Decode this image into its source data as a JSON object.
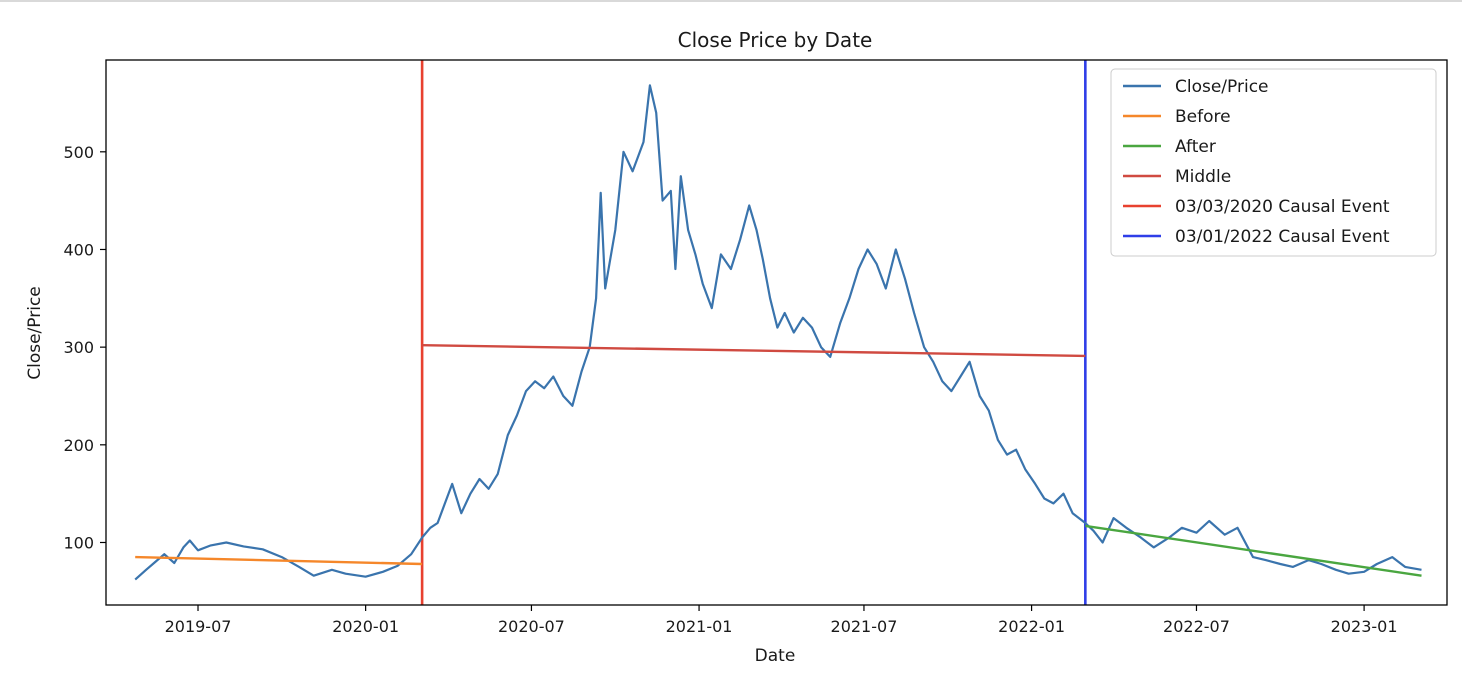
{
  "chart_data": {
    "type": "line",
    "title": "Close Price by Date",
    "xlabel": "Date",
    "ylabel": "Close/Price",
    "x_range": [
      "2019-03-22",
      "2023-04-02"
    ],
    "ylim": [
      36,
      594
    ],
    "x_ticks": [
      "2019-07",
      "2020-01",
      "2020-07",
      "2021-01",
      "2021-07",
      "2022-01",
      "2022-07",
      "2023-01"
    ],
    "y_ticks": [
      100,
      200,
      300,
      400,
      500
    ],
    "grid": false,
    "legend_position": "top-right",
    "series": [
      {
        "name": "Close/Price",
        "color": "#3a74ad",
        "points": [
          [
            "2019-04-23",
            62
          ],
          [
            "2019-05-05",
            72
          ],
          [
            "2019-05-15",
            80
          ],
          [
            "2019-05-25",
            88
          ],
          [
            "2019-06-05",
            79
          ],
          [
            "2019-06-15",
            95
          ],
          [
            "2019-06-22",
            102
          ],
          [
            "2019-07-01",
            92
          ],
          [
            "2019-07-15",
            97
          ],
          [
            "2019-08-01",
            100
          ],
          [
            "2019-08-20",
            96
          ],
          [
            "2019-09-10",
            93
          ],
          [
            "2019-10-01",
            85
          ],
          [
            "2019-10-20",
            75
          ],
          [
            "2019-11-05",
            66
          ],
          [
            "2019-11-25",
            72
          ],
          [
            "2019-12-10",
            68
          ],
          [
            "2020-01-01",
            65
          ],
          [
            "2020-01-20",
            70
          ],
          [
            "2020-02-05",
            76
          ],
          [
            "2020-02-20",
            88
          ],
          [
            "2020-03-03",
            105
          ],
          [
            "2020-03-12",
            115
          ],
          [
            "2020-03-20",
            120
          ],
          [
            "2020-03-28",
            140
          ],
          [
            "2020-04-05",
            160
          ],
          [
            "2020-04-15",
            130
          ],
          [
            "2020-04-25",
            150
          ],
          [
            "2020-05-05",
            165
          ],
          [
            "2020-05-15",
            155
          ],
          [
            "2020-05-25",
            170
          ],
          [
            "2020-06-05",
            210
          ],
          [
            "2020-06-15",
            230
          ],
          [
            "2020-06-25",
            255
          ],
          [
            "2020-07-05",
            265
          ],
          [
            "2020-07-15",
            258
          ],
          [
            "2020-07-25",
            270
          ],
          [
            "2020-08-05",
            250
          ],
          [
            "2020-08-15",
            240
          ],
          [
            "2020-08-25",
            275
          ],
          [
            "2020-09-03",
            300
          ],
          [
            "2020-09-10",
            350
          ],
          [
            "2020-09-15",
            458
          ],
          [
            "2020-09-20",
            360
          ],
          [
            "2020-10-01",
            420
          ],
          [
            "2020-10-10",
            500
          ],
          [
            "2020-10-20",
            480
          ],
          [
            "2020-11-01",
            510
          ],
          [
            "2020-11-08",
            568
          ],
          [
            "2020-11-15",
            540
          ],
          [
            "2020-11-22",
            450
          ],
          [
            "2020-12-01",
            460
          ],
          [
            "2020-12-06",
            380
          ],
          [
            "2020-12-12",
            475
          ],
          [
            "2020-12-20",
            420
          ],
          [
            "2020-12-28",
            395
          ],
          [
            "2021-01-05",
            365
          ],
          [
            "2021-01-15",
            340
          ],
          [
            "2021-01-25",
            395
          ],
          [
            "2021-02-05",
            380
          ],
          [
            "2021-02-15",
            410
          ],
          [
            "2021-02-25",
            445
          ],
          [
            "2021-03-05",
            420
          ],
          [
            "2021-03-12",
            390
          ],
          [
            "2021-03-20",
            350
          ],
          [
            "2021-03-28",
            320
          ],
          [
            "2021-04-05",
            335
          ],
          [
            "2021-04-15",
            315
          ],
          [
            "2021-04-25",
            330
          ],
          [
            "2021-05-05",
            320
          ],
          [
            "2021-05-15",
            300
          ],
          [
            "2021-05-25",
            290
          ],
          [
            "2021-06-05",
            325
          ],
          [
            "2021-06-15",
            350
          ],
          [
            "2021-06-25",
            380
          ],
          [
            "2021-07-05",
            400
          ],
          [
            "2021-07-15",
            385
          ],
          [
            "2021-07-25",
            360
          ],
          [
            "2021-08-05",
            400
          ],
          [
            "2021-08-15",
            370
          ],
          [
            "2021-08-25",
            335
          ],
          [
            "2021-09-05",
            300
          ],
          [
            "2021-09-15",
            285
          ],
          [
            "2021-09-25",
            265
          ],
          [
            "2021-10-05",
            255
          ],
          [
            "2021-10-15",
            270
          ],
          [
            "2021-10-25",
            285
          ],
          [
            "2021-11-05",
            250
          ],
          [
            "2021-11-15",
            235
          ],
          [
            "2021-11-25",
            205
          ],
          [
            "2021-12-05",
            190
          ],
          [
            "2021-12-15",
            195
          ],
          [
            "2021-12-25",
            175
          ],
          [
            "2022-01-05",
            160
          ],
          [
            "2022-01-15",
            145
          ],
          [
            "2022-01-25",
            140
          ],
          [
            "2022-02-05",
            150
          ],
          [
            "2022-02-15",
            130
          ],
          [
            "2022-03-01",
            120
          ],
          [
            "2022-03-10",
            112
          ],
          [
            "2022-03-20",
            100
          ],
          [
            "2022-04-01",
            125
          ],
          [
            "2022-04-15",
            115
          ],
          [
            "2022-05-01",
            105
          ],
          [
            "2022-05-15",
            95
          ],
          [
            "2022-06-01",
            105
          ],
          [
            "2022-06-15",
            115
          ],
          [
            "2022-07-01",
            110
          ],
          [
            "2022-07-15",
            122
          ],
          [
            "2022-08-01",
            108
          ],
          [
            "2022-08-15",
            115
          ],
          [
            "2022-09-01",
            85
          ],
          [
            "2022-09-15",
            82
          ],
          [
            "2022-10-01",
            78
          ],
          [
            "2022-10-15",
            75
          ],
          [
            "2022-11-01",
            82
          ],
          [
            "2022-11-15",
            78
          ],
          [
            "2022-12-01",
            72
          ],
          [
            "2022-12-15",
            68
          ],
          [
            "2023-01-01",
            70
          ],
          [
            "2023-01-15",
            78
          ],
          [
            "2023-02-01",
            85
          ],
          [
            "2023-02-15",
            75
          ],
          [
            "2023-03-05",
            72
          ]
        ]
      },
      {
        "name": "Before",
        "color": "#f5872a",
        "points": [
          [
            "2019-04-23",
            85
          ],
          [
            "2020-03-03",
            78
          ]
        ]
      },
      {
        "name": "After",
        "color": "#4aa640",
        "points": [
          [
            "2022-03-01",
            117
          ],
          [
            "2023-03-05",
            66
          ]
        ]
      },
      {
        "name": "Middle",
        "color": "#d04a41",
        "points": [
          [
            "2020-03-03",
            302
          ],
          [
            "2022-03-01",
            291
          ]
        ]
      }
    ],
    "vertical_lines": [
      {
        "name": "03/03/2020 Causal Event",
        "date": "2020-03-03",
        "color": "#e8412f"
      },
      {
        "name": "03/01/2022 Causal Event",
        "date": "2022-03-01",
        "color": "#2f3ee8"
      }
    ]
  }
}
